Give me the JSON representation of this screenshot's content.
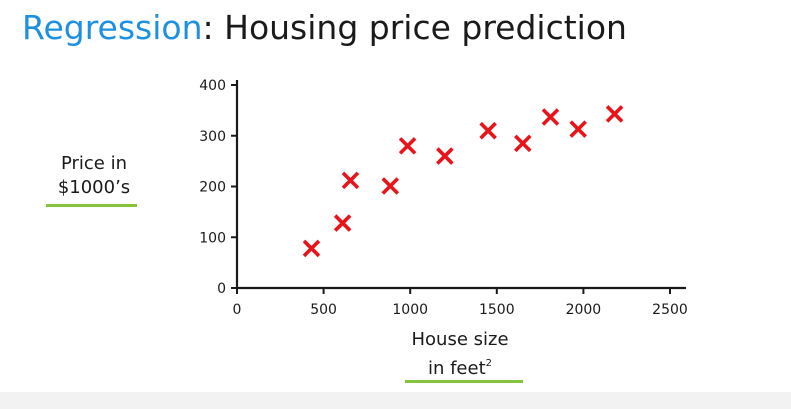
{
  "slide": {
    "title_accent": "Regression",
    "title_rest": ": Housing price prediction"
  },
  "axes": {
    "ylabel_line1": "Price in",
    "ylabel_line2": "$1000’s",
    "xlabel_line1": "House size",
    "xlabel_line2": "in feet",
    "xlabel_sup": "2"
  },
  "colors": {
    "title_accent": "#1e90e0",
    "marker": "#e8141a",
    "underline": "#86c440",
    "axis": "#1a1a1a"
  },
  "chart_data": {
    "type": "scatter",
    "marker": "x",
    "xlim": [
      0,
      2500
    ],
    "ylim": [
      0,
      400
    ],
    "xticks": [
      0,
      500,
      1000,
      1500,
      2000,
      2500
    ],
    "yticks": [
      0,
      100,
      200,
      300,
      400
    ],
    "grid": false,
    "points": [
      {
        "x": 430,
        "y": 78
      },
      {
        "x": 610,
        "y": 128
      },
      {
        "x": 655,
        "y": 212
      },
      {
        "x": 885,
        "y": 201
      },
      {
        "x": 985,
        "y": 280
      },
      {
        "x": 1200,
        "y": 260
      },
      {
        "x": 1450,
        "y": 310
      },
      {
        "x": 1650,
        "y": 285
      },
      {
        "x": 1810,
        "y": 337
      },
      {
        "x": 1970,
        "y": 313
      },
      {
        "x": 2180,
        "y": 343
      }
    ]
  }
}
